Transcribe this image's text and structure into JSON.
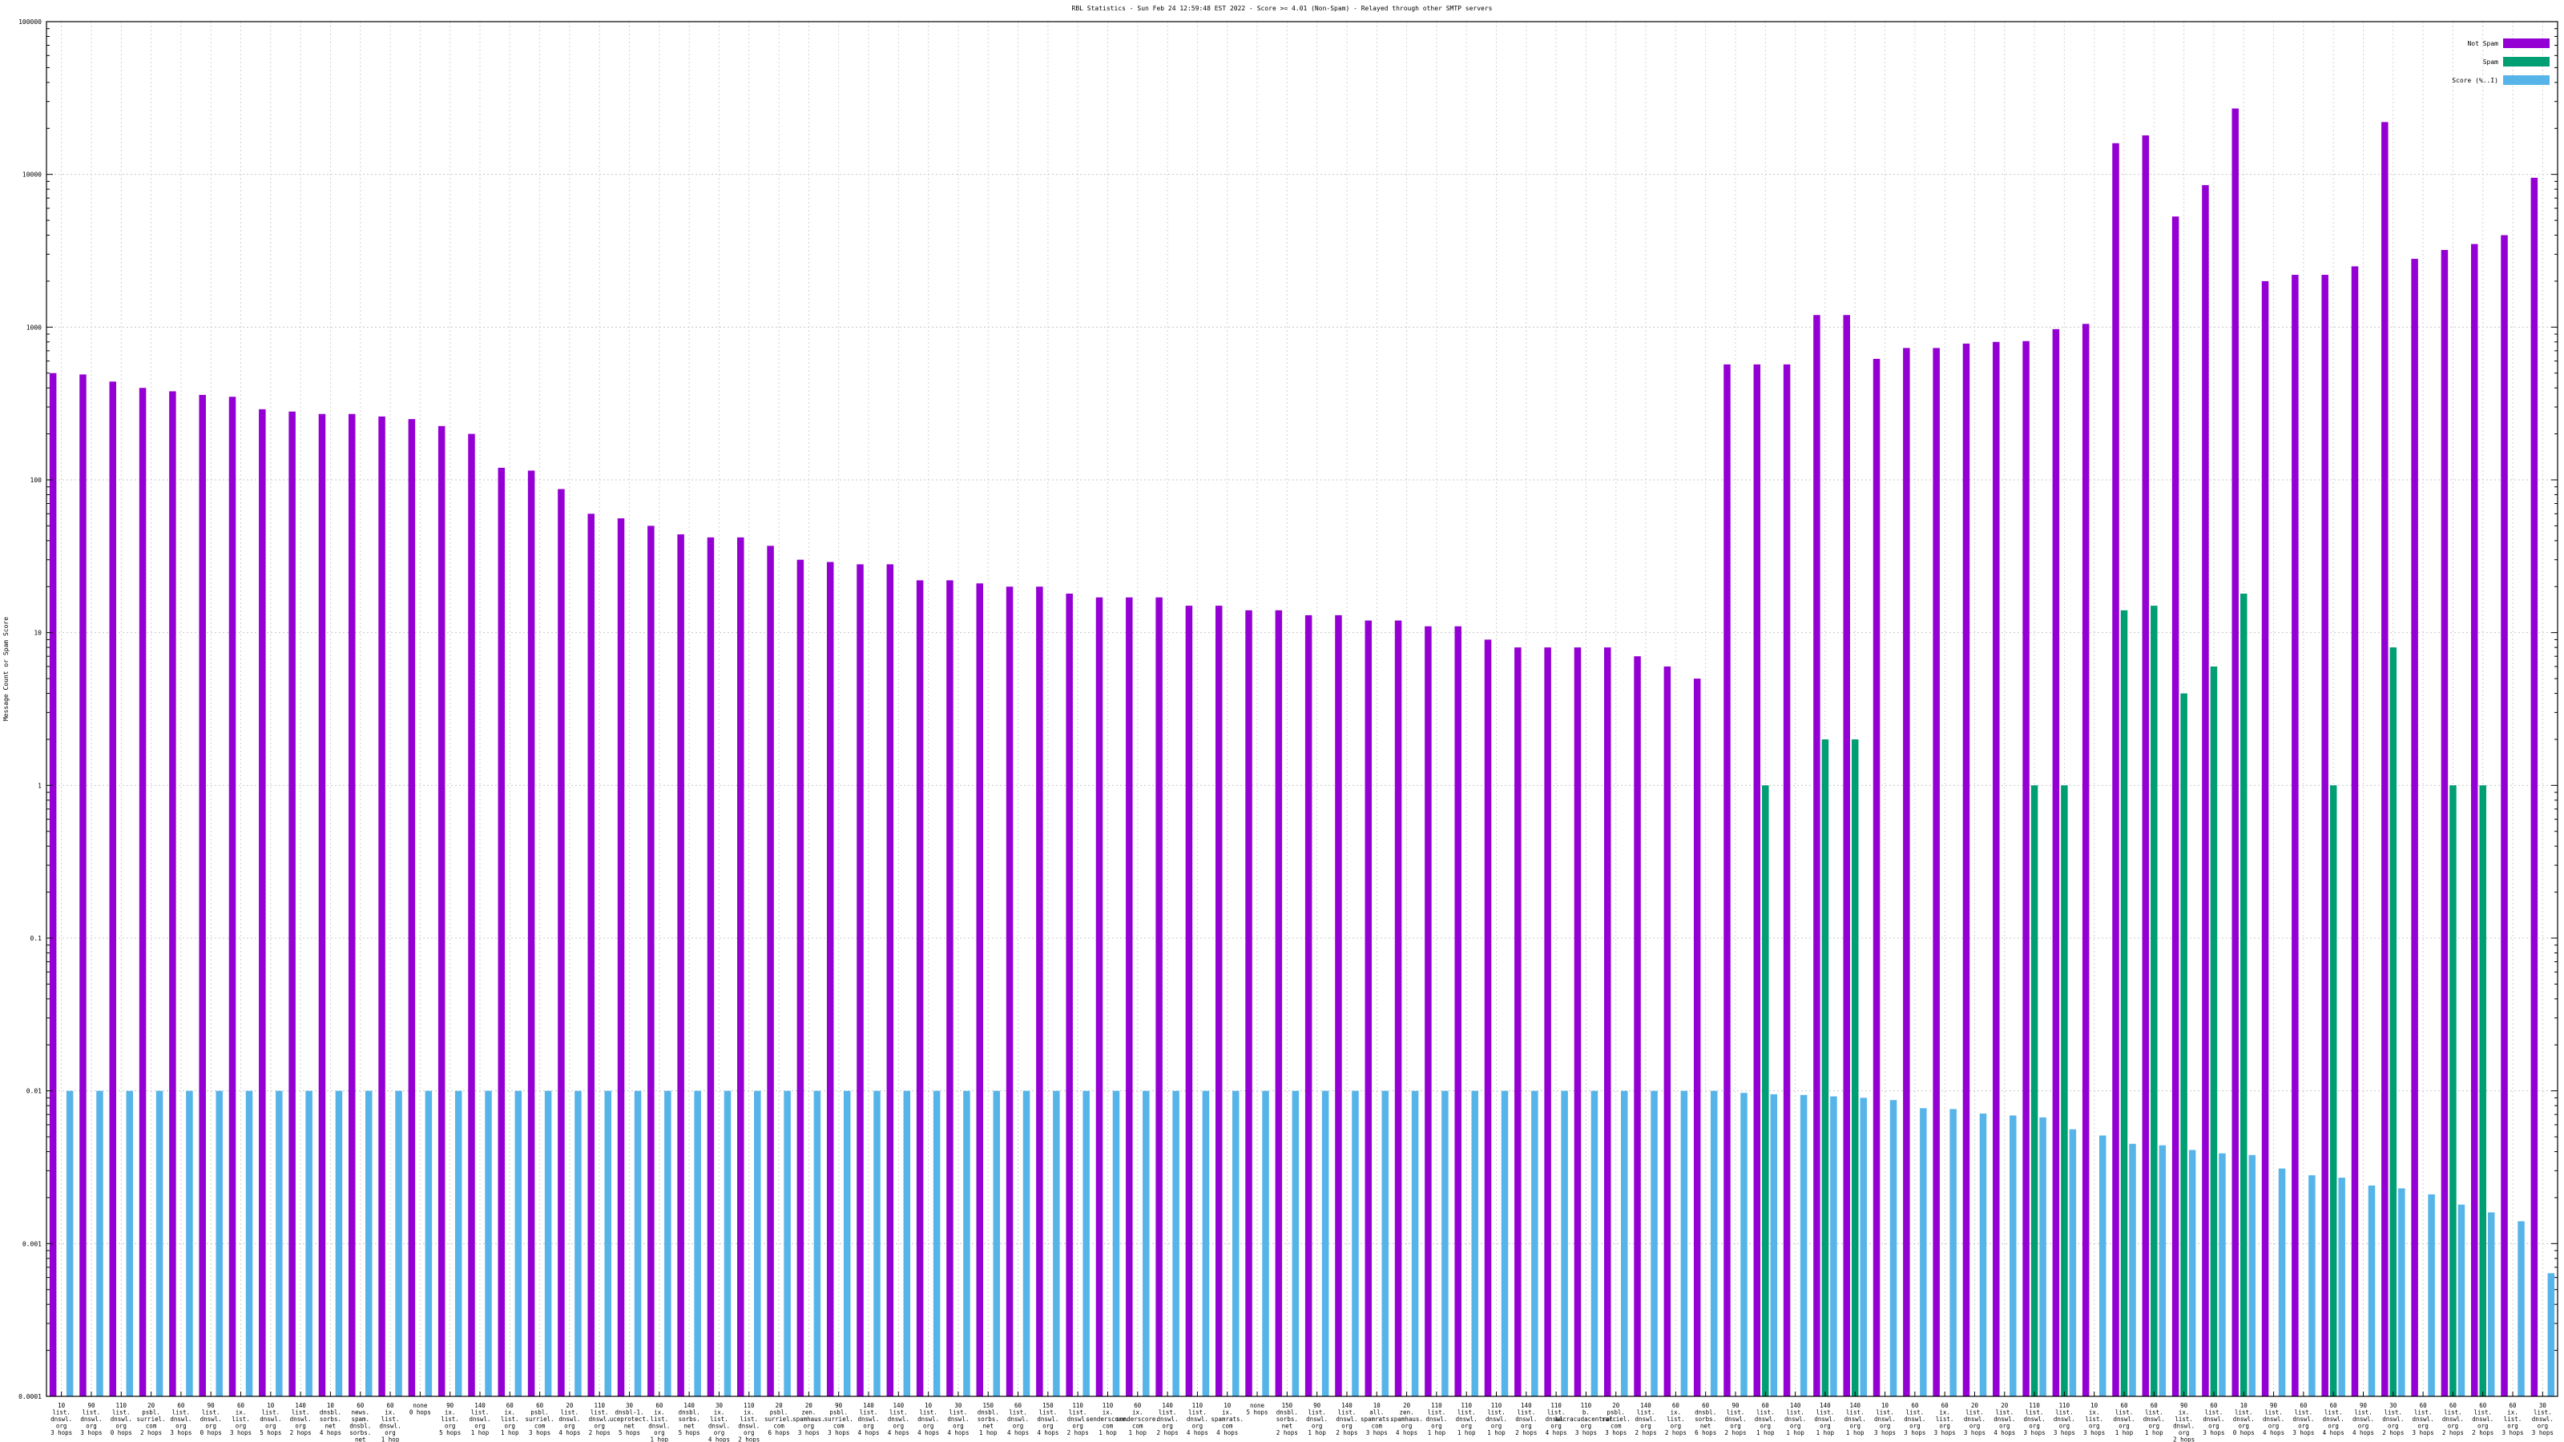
{
  "chart_data": {
    "type": "bar",
    "title": "RBL Statistics - Sun Feb 24 12:59:48 EST 2022 - Score >= 4.01 (Non-Spam) - Relayed through other SMTP servers",
    "xlabel": "",
    "ylabel": "Message Count or Spam Score",
    "yscale": "log",
    "ylim": [
      0.0001,
      100000
    ],
    "yticks": [
      "0.0001",
      "0.001",
      "0.01",
      "0.1",
      "1",
      "10",
      "100",
      "1000",
      "10000",
      "100000"
    ],
    "grid": true,
    "legend_position": "top-right",
    "categories": [
      "10 list. dnswl. org 3 hops",
      "90 list. dnswl. org 3 hops",
      "110 list. dnswl. org 0 hops",
      "20 psbl. surriel. com 2 hops",
      "60 list. dnswl. org 3 hops",
      "90 list. dnswl. org 0 hops",
      "60 ix. list. org 3 hops",
      "10 list. dnswl. org 5 hops",
      "140 list. dnswl. org 2 hops",
      "10 dnsbl. sorbs. net 4 hops",
      "60 news. spam. dnsbl. sorbs. net 4 hops",
      "60 ix. list. dnswl. org 1 hop",
      "none 0 hops",
      "90 ix. list. org 5 hops",
      "140 list. dnswl. org 1 hop",
      "60 ix. list. org 1 hop",
      "60 psbl. surriel. com 3 hops",
      "20 list. dnswl. org 4 hops",
      "110 list. dnswl. org 2 hops",
      "30 dnsbl-1. uceprotect. net 5 hops",
      "60 ix. list. dnswl. org 1 hop",
      "140 dnsbl. sorbs. net 5 hops",
      "30 ix. list. dnswl. org 4 hops",
      "110 ix. list. dnswl. org 2 hops",
      "20 psbl. surriel. com 6 hops",
      "20 zen. spamhaus. org 3 hops",
      "90 psbl. surriel. com 3 hops",
      "140 list. dnswl. org 4 hops",
      "140 list. dnswl. org 4 hops",
      "10 list. dnswl. org 4 hops",
      "30 list. dnswl. org 4 hops",
      "150 dnsbl. sorbs. net 1 hop",
      "60 list. dnswl. org 4 hops",
      "150 list. dnswl. org 4 hops",
      "110 list. dnswl. org 2 hops",
      "110 ix. senderscore. com 1 hop",
      "60 ix. senderscore. com 1 hop",
      "140 list. dnswl. org 2 hops",
      "110 list. dnswl. org 4 hops",
      "10 ix. spamrats. com 4 hops",
      "none 5 hops",
      "150 dnsbl. sorbs. net 2 hops",
      "90 list. dnswl. org 1 hop",
      "140 list. dnswl. org 2 hops",
      "10 all. spamrats. com 3 hops",
      "20 zen. spamhaus. org 4 hops",
      "110 list. dnswl. org 1 hop",
      "110 list. dnswl. org 1 hop",
      "110 list. dnswl. org 1 hop",
      "140 list. dnswl. org 2 hops",
      "110 list. dnswl. org 4 hops",
      "110 b. barracudacentral. org 3 hops",
      "20 psbl. surriel. com 3 hops",
      "140 list. dnswl. org 2 hops",
      "60 ix. list. org 2 hops",
      "60 dnsbl. sorbs. net 6 hops",
      "90 list. dnswl. org 2 hops",
      "60 list. dnswl. org 1 hop",
      "140 list. dnswl. org 1 hop",
      "140 list. dnswl. org 1 hop",
      "140 list. dnswl. org 1 hop",
      "10 list. dnswl. org 3 hops",
      "60 list. dnswl. org 3 hops",
      "60 ix. list. org 3 hops",
      "20 list. dnswl. org 3 hops",
      "20 list. dnswl. org 4 hops",
      "110 list. dnswl. org 3 hops",
      "110 list. dnswl. org 3 hops",
      "10 ix. list. org 3 hops",
      "60 list. dnswl. org 1 hop",
      "60 list. dnswl. org 1 hop",
      "90 ix. list. dnswl. org 2 hops",
      "60 list. dnswl. org 3 hops",
      "10 list. dnswl. org 0 hops",
      "90 list. dnswl. org 4 hops",
      "60 list. dnswl. org 3 hops",
      "60 list. dnswl. org 4 hops",
      "90 list. dnswl. org 4 hops",
      "30 list. dnswl. org 2 hops",
      "60 list. dnswl. org 3 hops",
      "60 list. dnswl. org 2 hops",
      "60 list. dnswl. org 2 hops",
      "60 ix. list. org 3 hops",
      "30 list. dnswl. org 3 hops"
    ],
    "series": [
      {
        "name": "Not Spam",
        "color": "#9400d3",
        "values": [
          500,
          490,
          440,
          400,
          380,
          360,
          350,
          290,
          280,
          270,
          270,
          260,
          250,
          225,
          200,
          120,
          115,
          87,
          60,
          56,
          50,
          44,
          42,
          42,
          37,
          30,
          29,
          28,
          28,
          22,
          22,
          21,
          20,
          20,
          18,
          17,
          17,
          17,
          15,
          15,
          14,
          14,
          13,
          13,
          12,
          12,
          11,
          11,
          9,
          8,
          8,
          8,
          8,
          7,
          6,
          5,
          570,
          570,
          570,
          1200,
          1200,
          620,
          730,
          730,
          780,
          800,
          810,
          970,
          1050,
          16000,
          18000,
          5300,
          8500,
          27000,
          2000,
          2200,
          2200,
          2500,
          22000,
          2800,
          3200,
          3500,
          4000,
          9500
        ]
      },
      {
        "name": "Spam",
        "color": "#009e73",
        "values": [
          0,
          0,
          0,
          0,
          0,
          0,
          0,
          0,
          0,
          0,
          0,
          0,
          0,
          0,
          0,
          0,
          0,
          0,
          0,
          0,
          0,
          0,
          0,
          0,
          0,
          0,
          0,
          0,
          0,
          0,
          0,
          0,
          0,
          0,
          0,
          0,
          0,
          0,
          0,
          0,
          0,
          0,
          0,
          0,
          0,
          0,
          0,
          0,
          0,
          0,
          0,
          0,
          0,
          0,
          0,
          0,
          0,
          1,
          0,
          2,
          2,
          0,
          0,
          0,
          0,
          0,
          1,
          1,
          0,
          14,
          15,
          4,
          6,
          18,
          0,
          0,
          1,
          0,
          8,
          0,
          1,
          1,
          0,
          0
        ]
      },
      {
        "name": "Score (%..I)",
        "color": "#56b4e9",
        "values": [
          0.01,
          0.01,
          0.01,
          0.01,
          0.01,
          0.01,
          0.01,
          0.01,
          0.01,
          0.01,
          0.01,
          0.01,
          0.01,
          0.01,
          0.01,
          0.01,
          0.01,
          0.01,
          0.01,
          0.01,
          0.01,
          0.01,
          0.01,
          0.01,
          0.01,
          0.01,
          0.01,
          0.01,
          0.01,
          0.01,
          0.01,
          0.01,
          0.01,
          0.01,
          0.01,
          0.01,
          0.01,
          0.01,
          0.01,
          0.01,
          0.01,
          0.01,
          0.01,
          0.01,
          0.01,
          0.01,
          0.01,
          0.01,
          0.01,
          0.01,
          0.01,
          0.01,
          0.01,
          0.01,
          0.01,
          0.01,
          0.0097,
          0.0095,
          0.0094,
          0.0092,
          0.009,
          0.0087,
          0.0077,
          0.0076,
          0.0071,
          0.0069,
          0.0067,
          0.0056,
          0.0051,
          0.0045,
          0.0044,
          0.0041,
          0.0039,
          0.0038,
          0.0031,
          0.0028,
          0.0027,
          0.0024,
          0.0023,
          0.0021,
          0.0018,
          0.0016,
          0.0014,
          0.00064
        ]
      }
    ]
  }
}
